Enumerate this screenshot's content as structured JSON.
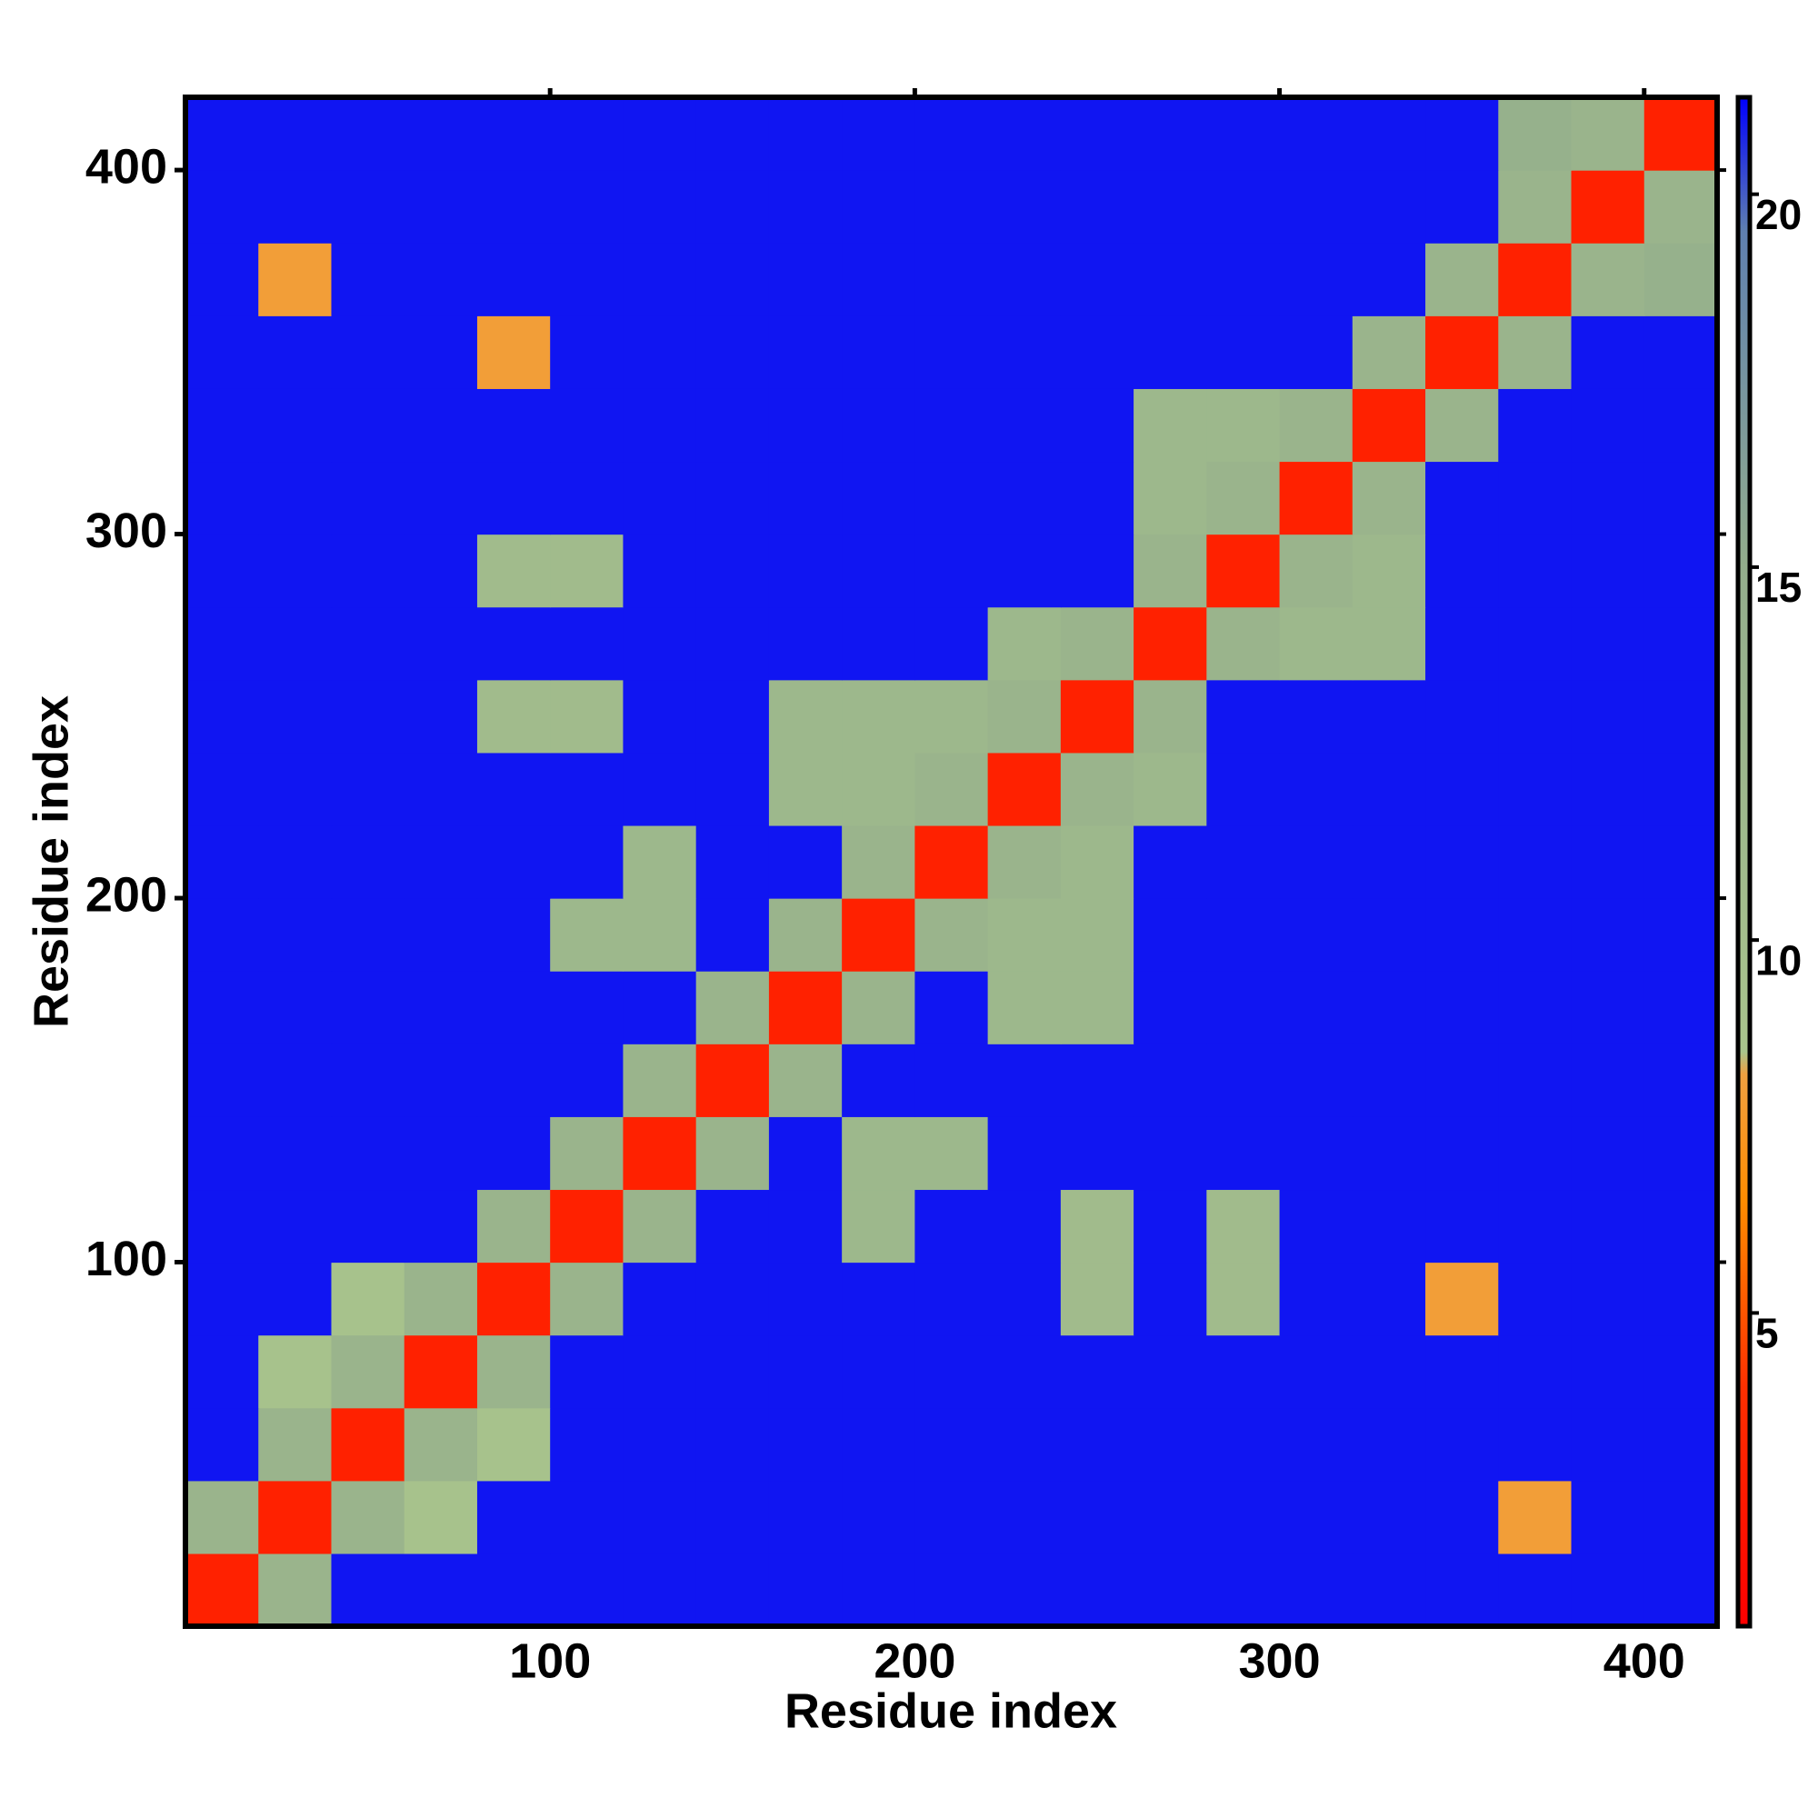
{
  "chart_data": {
    "type": "heatmap",
    "x_label": "Residue index",
    "y_label": "Residue index",
    "x": [
      10,
      30,
      50,
      70,
      90,
      110,
      130,
      150,
      170,
      190,
      210,
      230,
      250,
      270,
      290,
      310,
      330,
      350,
      370,
      390,
      410
    ],
    "y": [
      10,
      30,
      50,
      70,
      90,
      110,
      130,
      150,
      170,
      190,
      210,
      230,
      250,
      270,
      290,
      310,
      330,
      350,
      370,
      390,
      410
    ],
    "z": [
      [
        3,
        13,
        21,
        21,
        21,
        21,
        21,
        21,
        21,
        21,
        21,
        21,
        21,
        21,
        21,
        21,
        21,
        21,
        21,
        21,
        21
      ],
      [
        13,
        3,
        13,
        9,
        21,
        21,
        21,
        21,
        21,
        21,
        21,
        21,
        21,
        21,
        21,
        21,
        21,
        21,
        8,
        21,
        21
      ],
      [
        21,
        13,
        3,
        13,
        9,
        21,
        21,
        21,
        21,
        21,
        21,
        21,
        21,
        21,
        21,
        21,
        21,
        21,
        21,
        21,
        21
      ],
      [
        21,
        9,
        13,
        3,
        13,
        21,
        21,
        21,
        21,
        21,
        21,
        21,
        21,
        21,
        21,
        21,
        21,
        21,
        21,
        21,
        21
      ],
      [
        21,
        21,
        9,
        13,
        3,
        13,
        21,
        21,
        21,
        21,
        21,
        21,
        11,
        21,
        11,
        21,
        21,
        8,
        21,
        21,
        21
      ],
      [
        21,
        21,
        21,
        21,
        13,
        3,
        13,
        21,
        21,
        12,
        21,
        21,
        11,
        21,
        11,
        21,
        21,
        21,
        21,
        21,
        21
      ],
      [
        21,
        21,
        21,
        21,
        21,
        13,
        3,
        13,
        21,
        12,
        12,
        21,
        21,
        21,
        21,
        21,
        21,
        21,
        21,
        21,
        21
      ],
      [
        21,
        21,
        21,
        21,
        21,
        21,
        13,
        3,
        13,
        21,
        21,
        21,
        21,
        21,
        21,
        21,
        21,
        21,
        21,
        21,
        21
      ],
      [
        21,
        21,
        21,
        21,
        21,
        21,
        21,
        13,
        3,
        13,
        21,
        12,
        12,
        21,
        21,
        21,
        21,
        21,
        21,
        21,
        21
      ],
      [
        21,
        21,
        21,
        21,
        21,
        12,
        12,
        21,
        13,
        3,
        13,
        12,
        12,
        21,
        21,
        21,
        21,
        21,
        21,
        21,
        21
      ],
      [
        21,
        21,
        21,
        21,
        21,
        21,
        12,
        21,
        21,
        13,
        3,
        13,
        12,
        21,
        21,
        21,
        21,
        21,
        21,
        21,
        21
      ],
      [
        21,
        21,
        21,
        21,
        21,
        21,
        21,
        21,
        12,
        12,
        13,
        3,
        13,
        12,
        21,
        21,
        21,
        21,
        21,
        21,
        21
      ],
      [
        21,
        21,
        21,
        21,
        11,
        11,
        21,
        21,
        12,
        12,
        12,
        13,
        3,
        13,
        21,
        21,
        21,
        21,
        21,
        21,
        21
      ],
      [
        21,
        21,
        21,
        21,
        21,
        21,
        21,
        21,
        21,
        21,
        21,
        12,
        13,
        3,
        13,
        12,
        12,
        21,
        21,
        21,
        21
      ],
      [
        21,
        21,
        21,
        21,
        11,
        11,
        21,
        21,
        21,
        21,
        21,
        21,
        21,
        13,
        3,
        13,
        12,
        21,
        21,
        21,
        21
      ],
      [
        21,
        21,
        21,
        21,
        21,
        21,
        21,
        21,
        21,
        21,
        21,
        21,
        21,
        12,
        13,
        3,
        13,
        21,
        21,
        21,
        21
      ],
      [
        21,
        21,
        21,
        21,
        21,
        21,
        21,
        21,
        21,
        21,
        21,
        21,
        21,
        12,
        12,
        13,
        3,
        13,
        21,
        21,
        21
      ],
      [
        21,
        21,
        21,
        21,
        8,
        21,
        21,
        21,
        21,
        21,
        21,
        21,
        21,
        21,
        21,
        21,
        13,
        3,
        13,
        21,
        21
      ],
      [
        21,
        8,
        21,
        21,
        21,
        21,
        21,
        21,
        21,
        21,
        21,
        21,
        21,
        21,
        21,
        21,
        21,
        13,
        3,
        13,
        14
      ],
      [
        21,
        21,
        21,
        21,
        21,
        21,
        21,
        21,
        21,
        21,
        21,
        21,
        21,
        21,
        21,
        21,
        21,
        21,
        13,
        3,
        13
      ],
      [
        21,
        21,
        21,
        21,
        21,
        21,
        21,
        21,
        21,
        21,
        21,
        21,
        21,
        21,
        21,
        21,
        21,
        21,
        14,
        13,
        3
      ]
    ],
    "xlim": [
      0,
      420
    ],
    "ylim": [
      0,
      420
    ],
    "xticks": [
      100,
      200,
      300,
      400
    ],
    "yticks": [
      100,
      200,
      300,
      400
    ],
    "zlim": [
      0.8,
      21.3
    ],
    "zticks": [
      5,
      10,
      15,
      20
    ],
    "colorscale": [
      [
        0.8,
        "#ff0000"
      ],
      [
        4,
        "#ff3000"
      ],
      [
        6.5,
        "#ff8c00"
      ],
      [
        8.2,
        "#f0a040"
      ],
      [
        8.5,
        "#a9c48c"
      ],
      [
        15,
        "#93ad8c"
      ],
      [
        19.5,
        "#5f80b0"
      ],
      [
        21.3,
        "#0000ff"
      ]
    ]
  }
}
